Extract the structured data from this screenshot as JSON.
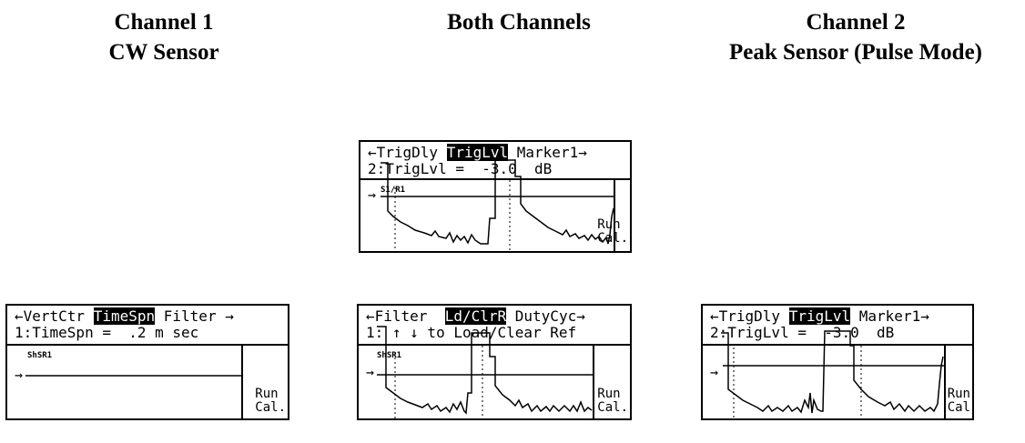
{
  "headings": {
    "channel1": {
      "line1": "Channel 1",
      "line2": "CW Sensor"
    },
    "both": {
      "line1": "Both Channels"
    },
    "channel2": {
      "line1": "Channel 2",
      "line2": "Peak Sensor (Pulse Mode)"
    }
  },
  "screens": {
    "top": {
      "menu_left": "←TrigDly ",
      "menu_selected": "TrigLvl",
      "menu_right": " Marker1→",
      "value_line": "2:TrigLvl =  -3.0  dB",
      "trace_label": "S1/R1",
      "arrow": "→",
      "run": "Run",
      "cal": "Cal."
    },
    "ch1": {
      "menu_left": "←VertCtr ",
      "menu_selected": "TimeSpn",
      "menu_right": " Filter →",
      "value_line": "1:TimeSpn =  .2 m sec",
      "trace_label": "ShSR1",
      "arrow": "→",
      "run": "Run",
      "cal": "Cal."
    },
    "both": {
      "menu_left": "←Filter  ",
      "menu_selected": "Ld/ClrR",
      "menu_right": " DutyCyc→",
      "value_line": "1: ↑ ↓ to Load/Clear Ref",
      "trace_label": "ShSR1",
      "arrow": "→",
      "run": "Run",
      "cal": "Cal."
    },
    "ch2": {
      "menu_left": "←TrigDly ",
      "menu_selected": "TrigLvl",
      "menu_right": " Marker1→",
      "value_line": "2:TrigLvl =  -3.0  dB",
      "arrow": "→",
      "run": "Run",
      "cal": "Cal"
    }
  }
}
